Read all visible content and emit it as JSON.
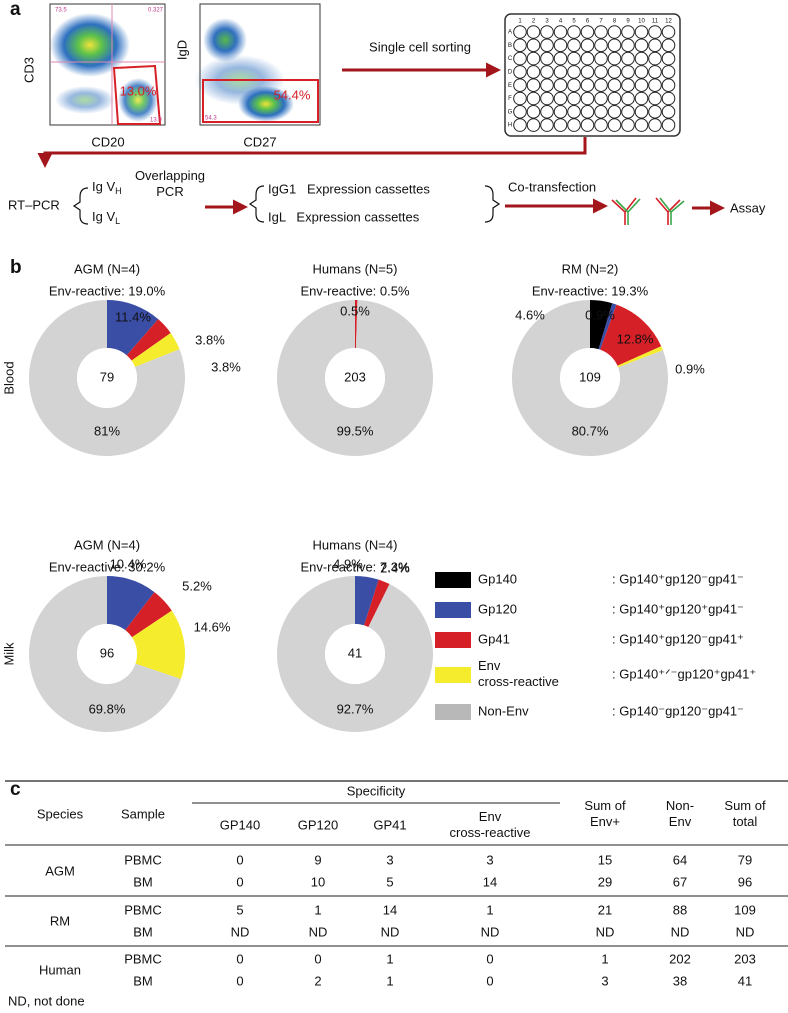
{
  "panel_a": {
    "label": "a",
    "plot1": {
      "y_axis": "CD3",
      "x_axis": "CD20",
      "gate": "13.0%",
      "quadrants": [
        "73.5",
        "0.327",
        "13.9"
      ]
    },
    "plot2": {
      "y_axis": "IgD",
      "x_axis": "CD27",
      "gate": "54.4%",
      "corner": "54.3"
    },
    "sorting": "Single cell sorting",
    "plate_columns": [
      "1",
      "2",
      "3",
      "4",
      "5",
      "6",
      "7",
      "8",
      "9",
      "10",
      "11",
      "12"
    ],
    "plate_rows": [
      "A",
      "B",
      "C",
      "D",
      "E",
      "F",
      "G",
      "H"
    ],
    "rt_pcr": "RT–PCR",
    "heavy": {
      "text": "Ig V",
      "sub": "H"
    },
    "light": {
      "text": "Ig V",
      "sub": "L"
    },
    "overlapping": "Overlapping\nPCR",
    "cassette1": "IgG1   Expression cassettes",
    "cassette2": "IgL   Expression cassettes",
    "cotransfection": "Co-transfection",
    "assay": "Assay"
  },
  "panel_b": {
    "label": "b",
    "row_labels": [
      "Blood",
      "Milk"
    ],
    "legend": [
      {
        "name": "Gp140",
        "color": "#000000",
        "definition": ": Gp140⁺gp120⁻gp41⁻"
      },
      {
        "name": "Gp120",
        "color": "#3a4ea6",
        "definition": ": Gp140⁺gp120⁺gp41⁻"
      },
      {
        "name": "Gp41",
        "color": "#d62027",
        "definition": ": Gp140⁺gp120⁻gp41⁺"
      },
      {
        "name": "Env\ncross-reactive",
        "color": "#f4ec2c",
        "definition": ": Gp140⁺ᐟ⁻gp120⁺gp41⁺"
      },
      {
        "name": "Non-Env",
        "color": "#d3d3d3",
        "definition": ": Gp140⁻gp120⁻gp41⁻"
      }
    ]
  },
  "chart_data": [
    {
      "type": "pie",
      "title": "AGM (N=4)",
      "subtitle": "Env-reactive: 19.0%",
      "center_label": 79,
      "values": [
        null,
        11.4,
        3.8,
        3.8,
        81
      ],
      "value_labels": [
        null,
        "11.4%",
        "3.8%",
        "3.8%",
        "81%"
      ]
    },
    {
      "type": "pie",
      "title": "Humans (N=5)",
      "subtitle": "Env-reactive: 0.5%",
      "center_label": 203,
      "values": [
        null,
        null,
        0.5,
        null,
        99.5
      ],
      "value_labels": [
        null,
        null,
        "0.5%",
        null,
        "99.5%"
      ]
    },
    {
      "type": "pie",
      "title": "RM (N=2)",
      "subtitle": "Env-reactive: 19.3%",
      "center_label": 109,
      "values": [
        4.6,
        0.9,
        12.8,
        0.9,
        80.7
      ],
      "value_labels": [
        "4.6%",
        "0.9%",
        "12.8%",
        "0.9%",
        "80.7%"
      ]
    },
    {
      "type": "pie",
      "title": "AGM (N=4)",
      "subtitle": "Env-reactive: 30.2%",
      "center_label": 96,
      "values": [
        null,
        10.4,
        5.2,
        14.6,
        69.8
      ],
      "value_labels": [
        null,
        "10.4%",
        "5.2%",
        "14.6%",
        "69.8%"
      ]
    },
    {
      "type": "pie",
      "title": "Humans (N=4)",
      "subtitle": "Env-reactive: 7.3%",
      "center_label": 41,
      "values": [
        null,
        4.9,
        2.4,
        null,
        92.7
      ],
      "value_labels": [
        null,
        "4.9%",
        "2.4%",
        null,
        "92.7%"
      ]
    }
  ],
  "table": {
    "label": "c",
    "headers": {
      "species": "Species",
      "sample": "Sample",
      "specificity": "Specificity",
      "columns": [
        "GP140",
        "GP120",
        "GP41",
        "Env\ncross-reactive"
      ],
      "sum_env": "Sum of\nEnv+",
      "non_env": "Non-\nEnv",
      "total": "Sum of\ntotal"
    },
    "groups": [
      {
        "species": "AGM",
        "rows": [
          [
            "PBMC",
            0,
            9,
            3,
            3,
            15,
            64,
            79
          ],
          [
            "BM",
            0,
            10,
            5,
            14,
            29,
            67,
            96
          ]
        ]
      },
      {
        "species": "RM",
        "rows": [
          [
            "PBMC",
            5,
            1,
            14,
            1,
            21,
            88,
            109
          ],
          [
            "BM",
            "ND",
            "ND",
            "ND",
            "ND",
            "ND",
            "ND",
            "ND"
          ]
        ]
      },
      {
        "species": "Human",
        "rows": [
          [
            "PBMC",
            0,
            0,
            1,
            0,
            1,
            202,
            203
          ],
          [
            "BM",
            0,
            2,
            1,
            0,
            3,
            38,
            41
          ]
        ]
      }
    ],
    "footnote": "ND, not done"
  }
}
